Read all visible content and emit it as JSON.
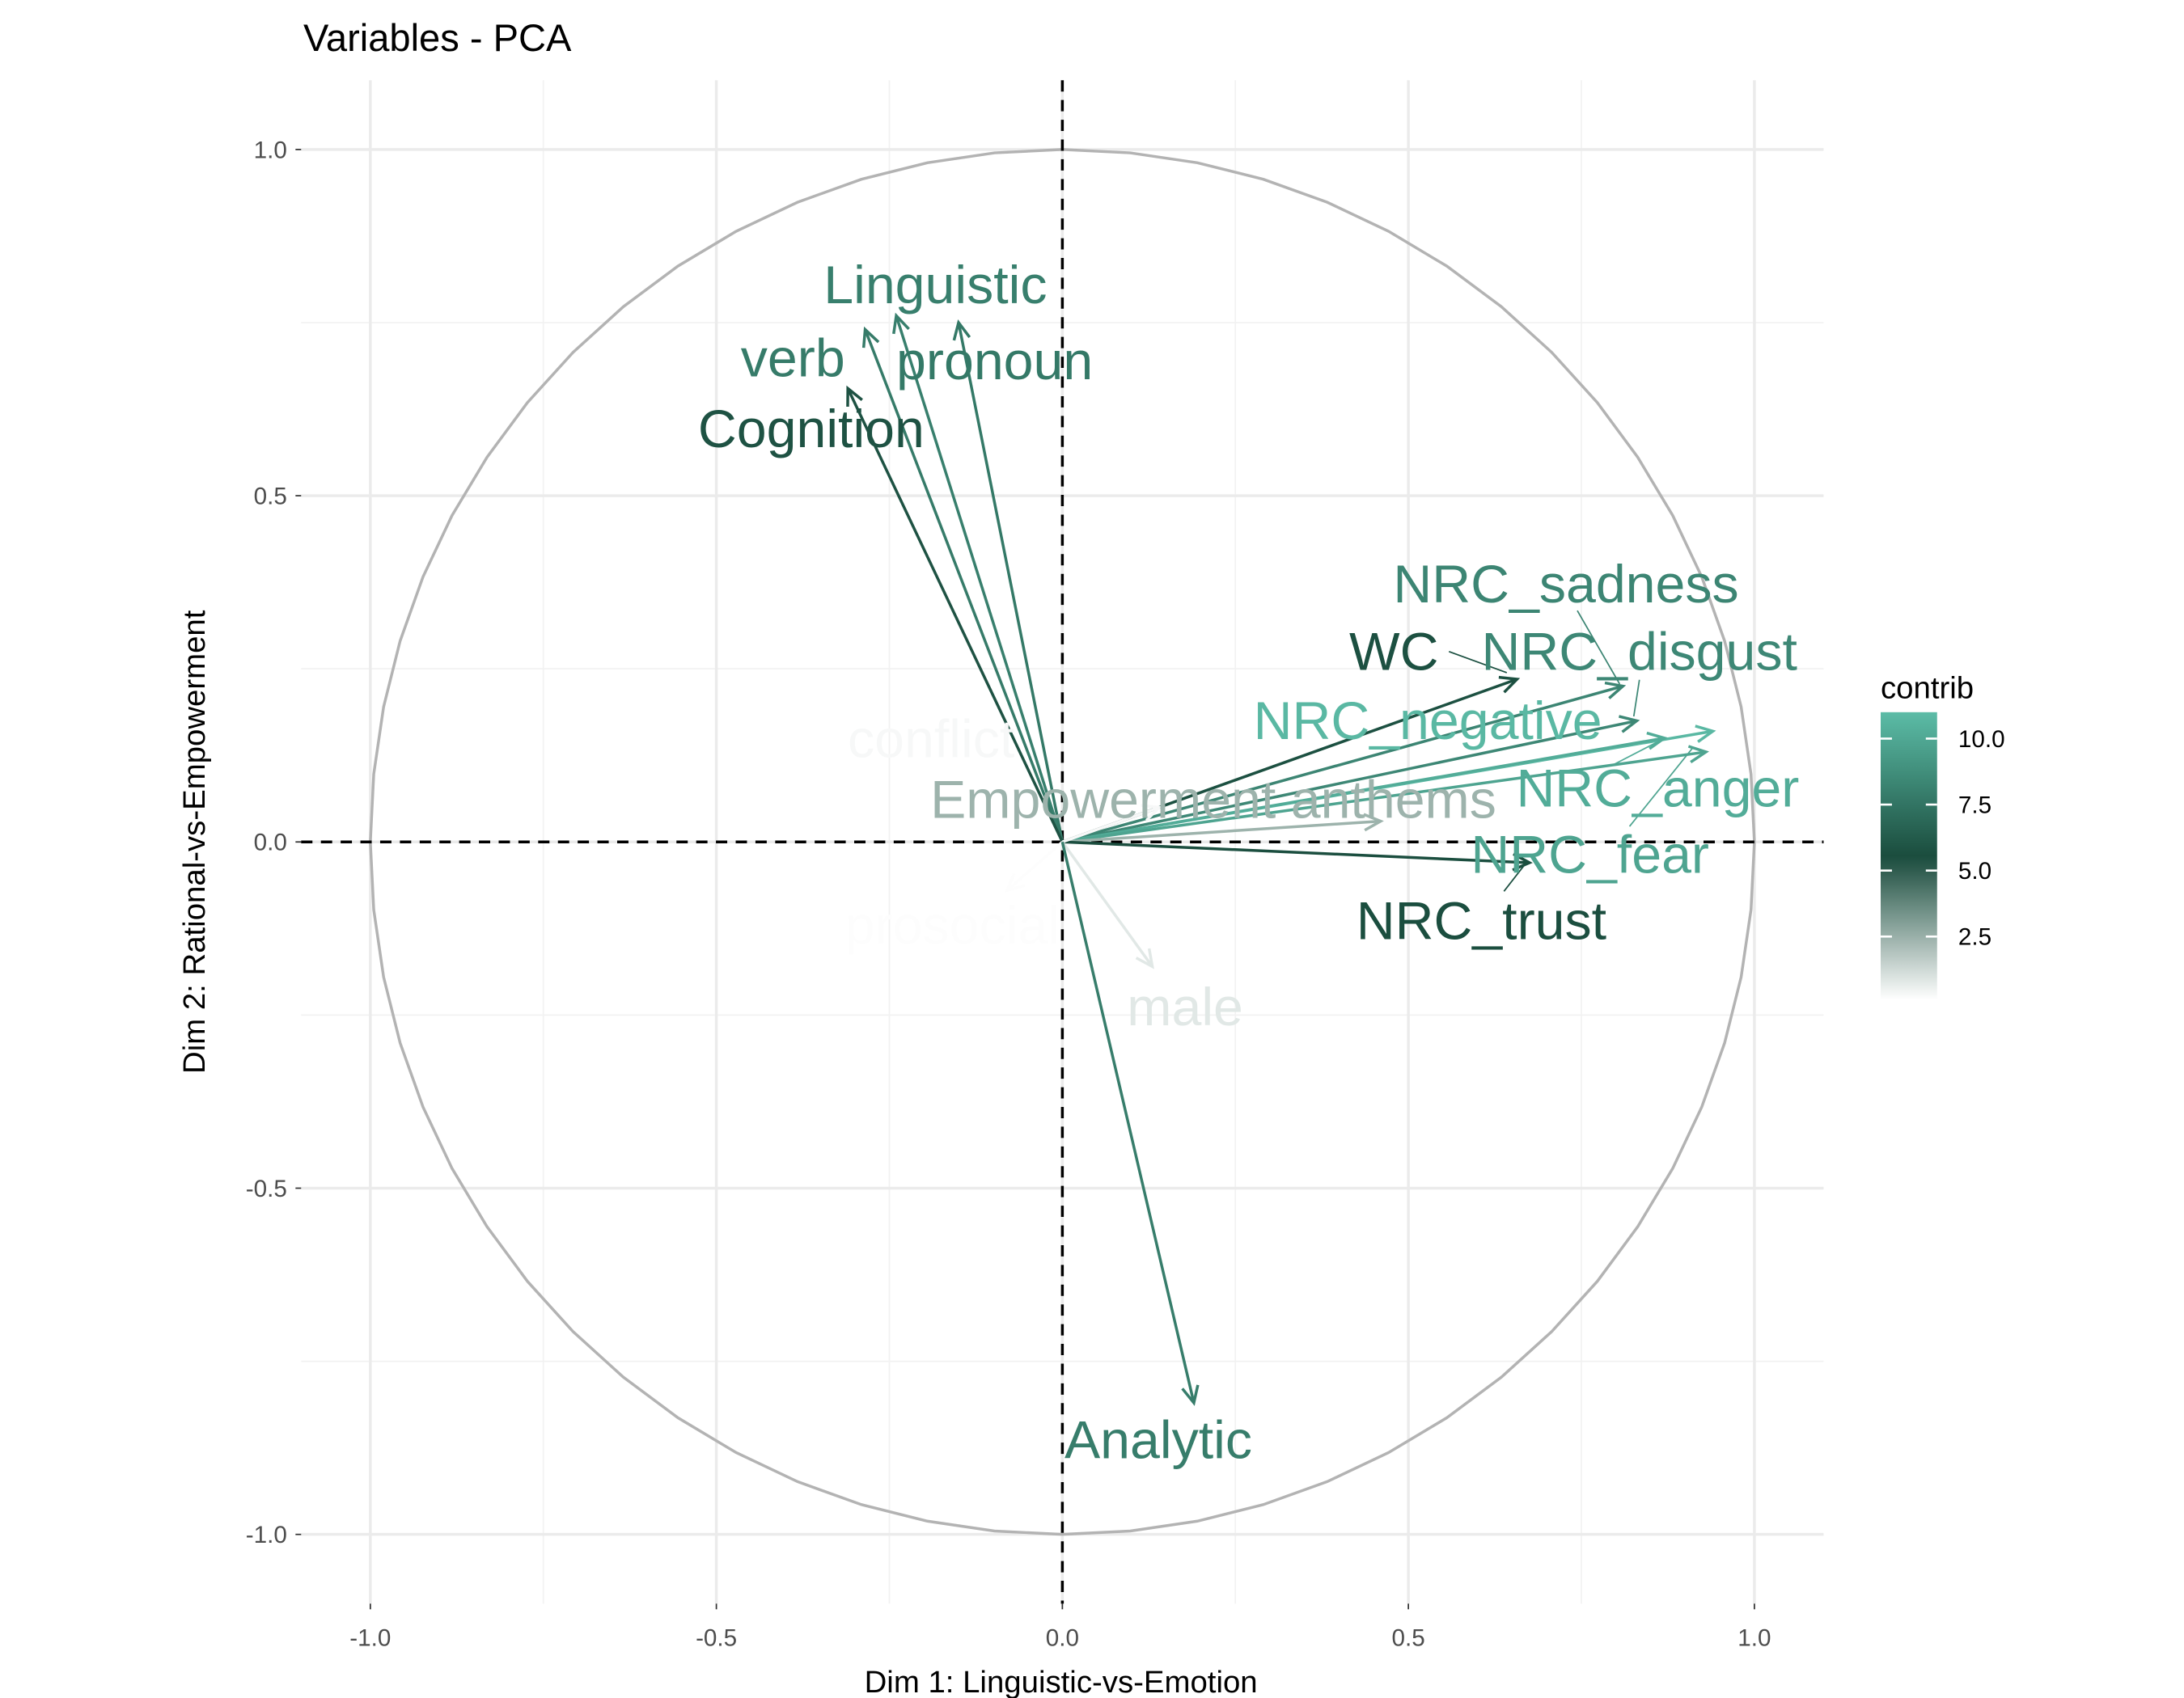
{
  "chart_data": {
    "type": "scatter",
    "subtype": "pca-variable-correlation-circle",
    "title": "Variables - PCA",
    "xlabel": "Dim 1: Linguistic-vs-Emotion",
    "ylabel": "Dim 2: Rational-vs-Empowerment",
    "xlim": [
      -1.1,
      1.1
    ],
    "ylim": [
      -1.1,
      1.1
    ],
    "xticks": [
      "-1.0",
      "-0.5",
      "0.0",
      "0.5",
      "1.0"
    ],
    "yticks": [
      "-1.0",
      "-0.5",
      "0.0",
      "0.5",
      "1.0"
    ],
    "grid": true,
    "unit_circle": true,
    "reference_lines": "dashed at x=0 and y=0",
    "legend": {
      "title": "contrib",
      "position": "right",
      "ticks": [
        "2.5",
        "5.0",
        "7.5",
        "10.0"
      ],
      "range": [
        0.1,
        11.0
      ],
      "colors": {
        "low": "#ffffff",
        "mid": "#1a4c3d",
        "high": "#5cbca7"
      },
      "midpoint": 5.5
    },
    "variables": [
      {
        "name": "Linguistic",
        "x": -0.24,
        "y": 0.76,
        "contrib": 8.0
      },
      {
        "name": "verb",
        "x": -0.285,
        "y": 0.74,
        "contrib": 7.8
      },
      {
        "name": "pronoun",
        "x": -0.15,
        "y": 0.75,
        "contrib": 7.7
      },
      {
        "name": "Cognition",
        "x": -0.31,
        "y": 0.655,
        "contrib": 5.8
      },
      {
        "name": "NRC_sadness",
        "x": 0.81,
        "y": 0.225,
        "contrib": 8.3
      },
      {
        "name": "WC",
        "x": 0.657,
        "y": 0.235,
        "contrib": 5.7
      },
      {
        "name": "NRC_disgust",
        "x": 0.83,
        "y": 0.175,
        "contrib": 8.4
      },
      {
        "name": "NRC_negative",
        "x": 0.94,
        "y": 0.16,
        "contrib": 10.8
      },
      {
        "name": "NRC_anger",
        "x": 0.87,
        "y": 0.15,
        "contrib": 10.2
      },
      {
        "name": "NRC_fear",
        "x": 0.93,
        "y": 0.13,
        "contrib": 9.8
      },
      {
        "name": "Empowerment anthems",
        "x": 0.46,
        "y": 0.03,
        "contrib": 2.4
      },
      {
        "name": "NRC_trust",
        "x": 0.675,
        "y": -0.03,
        "contrib": 5.6
      },
      {
        "name": "conflict",
        "x": 0.14,
        "y": 0.05,
        "contrib": 0.3
      },
      {
        "name": "prosocial",
        "x": -0.08,
        "y": -0.07,
        "contrib": 0.15
      },
      {
        "name": "male",
        "x": 0.13,
        "y": -0.18,
        "contrib": 0.8
      },
      {
        "name": "Analytic",
        "x": 0.19,
        "y": -0.81,
        "contrib": 7.9
      }
    ]
  }
}
